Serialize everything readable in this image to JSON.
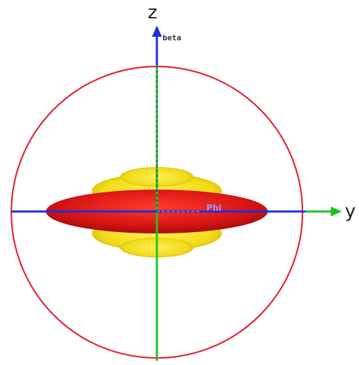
{
  "labels": {
    "z_axis": "z",
    "y_axis": "y",
    "beta_angle": "beta",
    "phi_angle": "Phi"
  },
  "colors": {
    "sphere_outline": "#e02a3a",
    "axis_vertical": "#22c022",
    "axis_horizontal": "#1e2fd8",
    "arrow_z": "#1e2fd8",
    "arrow_y": "#22c022",
    "lobe_red": "#d81414",
    "lobe_yellow": "#f2dc1a"
  }
}
